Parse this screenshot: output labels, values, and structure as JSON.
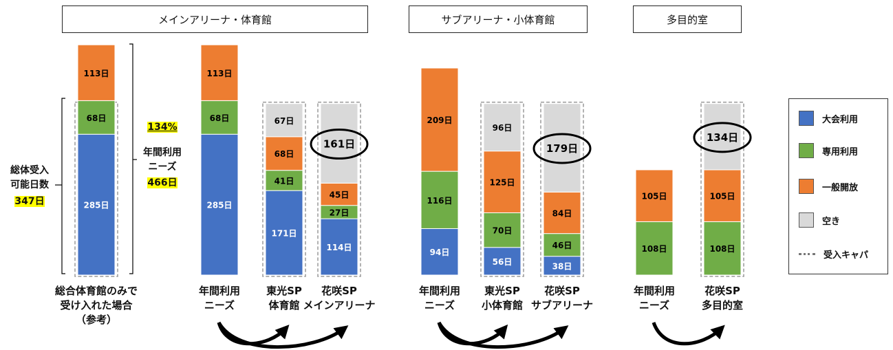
{
  "headers": {
    "main": "メインアリーナ・体育館",
    "sub": "サブアリーナ・小体育館",
    "multi": "多目的室"
  },
  "annotations": {
    "total_capacity": "総体受入\n可能日数",
    "total_capacity_value": "347日",
    "ratio": "134%",
    "annual_needs": "年間利用\nニーズ",
    "annual_needs_value": "466日"
  },
  "colors": {
    "taikai": "#4472c4",
    "senyo": "#70ad47",
    "ippan": "#ed7d31",
    "aki": "#d9d9d9",
    "capacity_border": "#999999",
    "highlight": "#ffff00"
  },
  "legend": [
    {
      "key": "taikai",
      "label": "大会利用"
    },
    {
      "key": "senyo",
      "label": "専用利用"
    },
    {
      "key": "ippan",
      "label": "一般開放"
    },
    {
      "key": "aki",
      "label": "空き"
    },
    {
      "key": "capacity",
      "label": "受入キャパ"
    }
  ],
  "chart_data": {
    "type": "bar",
    "stacked": true,
    "unit": "日",
    "series_order": [
      "taikai",
      "senyo",
      "ippan",
      "aki"
    ],
    "bars": [
      {
        "label": "総合体育館のみで\n受け入れた場合\n（参考）",
        "values": {
          "taikai": 285,
          "senyo": 68,
          "ippan": 113
        },
        "capacity": 347
      },
      {
        "label": "年間利用\nニーズ",
        "values": {
          "taikai": 285,
          "senyo": 68,
          "ippan": 113
        }
      },
      {
        "label": "東光SP\n体育館",
        "values": {
          "taikai": 171,
          "senyo": 41,
          "ippan": 68,
          "aki": 67
        },
        "capacity": 347
      },
      {
        "label": "花咲SP\nメインアリーナ",
        "values": {
          "taikai": 114,
          "senyo": 27,
          "ippan": 45,
          "aki": 161
        },
        "capacity": 347,
        "circled": "aki"
      },
      {
        "label": "年間利用\nニーズ",
        "values": {
          "taikai": 94,
          "senyo": 116,
          "ippan": 209
        }
      },
      {
        "label": "東光SP\n小体育館",
        "values": {
          "taikai": 56,
          "senyo": 70,
          "ippan": 125,
          "aki": 96
        },
        "capacity": 347
      },
      {
        "label": "花咲SP\nサブアリーナ",
        "values": {
          "taikai": 38,
          "senyo": 46,
          "ippan": 84,
          "aki": 179
        },
        "capacity": 347,
        "circled": "aki"
      },
      {
        "label": "年間利用\nニーズ",
        "values": {
          "senyo": 108,
          "ippan": 105
        }
      },
      {
        "label": "花咲SP\n多目的室",
        "values": {
          "senyo": 108,
          "ippan": 105,
          "aki": 134
        },
        "capacity": 347,
        "circled": "aki"
      }
    ]
  }
}
